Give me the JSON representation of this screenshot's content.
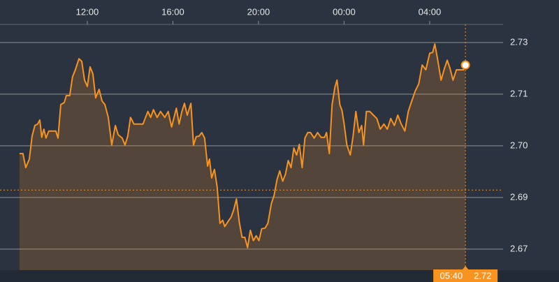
{
  "chart_data": {
    "type": "area-line",
    "x": [
      8.83,
      8.99,
      9.12,
      9.29,
      9.42,
      9.55,
      9.68,
      9.78,
      9.87,
      9.97,
      10.07,
      10.2,
      10.36,
      10.53,
      10.63,
      10.76,
      10.92,
      11.02,
      11.18,
      11.31,
      11.44,
      11.61,
      11.74,
      11.87,
      12.0,
      12.13,
      12.26,
      12.39,
      12.55,
      12.69,
      12.82,
      12.98,
      13.14,
      13.31,
      13.44,
      13.63,
      13.76,
      13.89,
      14.02,
      14.18,
      14.34,
      14.6,
      14.83,
      14.96,
      15.09,
      15.26,
      15.42,
      15.62,
      15.78,
      15.94,
      16.16,
      16.29,
      16.42,
      16.54,
      16.67,
      16.84,
      16.96,
      17.09,
      17.22,
      17.35,
      17.48,
      17.62,
      17.71,
      17.81,
      17.94,
      18.07,
      18.2,
      18.33,
      18.42,
      18.59,
      18.72,
      18.85,
      18.97,
      19.1,
      19.23,
      19.36,
      19.49,
      19.62,
      19.76,
      19.89,
      20.02,
      20.15,
      20.31,
      20.44,
      20.6,
      20.73,
      20.86,
      20.99,
      21.13,
      21.26,
      21.39,
      21.52,
      21.65,
      21.78,
      21.91,
      22.04,
      22.17,
      22.3,
      22.43,
      22.6,
      22.76,
      22.92,
      23.09,
      23.18,
      23.31,
      23.44,
      23.57,
      23.67,
      23.8,
      23.9,
      24.0,
      24.13,
      24.29,
      24.42,
      24.55,
      24.69,
      24.82,
      24.91,
      25.04,
      25.2,
      25.37,
      25.53,
      25.69,
      25.86,
      26.02,
      26.18,
      26.35,
      26.51,
      26.67,
      26.84,
      27.0,
      27.16,
      27.33,
      27.49,
      27.65,
      27.82,
      28.0,
      28.14,
      28.24,
      28.37,
      28.53,
      28.69,
      28.82,
      28.95,
      29.09,
      29.25,
      29.41,
      29.58,
      29.67
    ],
    "series": [
      {
        "color": "#f7931e",
        "values": [
          2.6979,
          2.6979,
          2.6941,
          2.6964,
          2.7026,
          2.7055,
          2.7059,
          2.707,
          2.7023,
          2.7045,
          2.7021,
          2.704,
          2.704,
          2.704,
          2.7021,
          2.7112,
          2.7117,
          2.7136,
          2.7136,
          2.7187,
          2.7206,
          2.7236,
          2.7229,
          2.7178,
          2.7161,
          2.7214,
          2.7195,
          2.713,
          2.7153,
          2.7121,
          2.7112,
          2.7077,
          2.7002,
          2.7055,
          2.703,
          2.7021,
          2.7002,
          2.7026,
          2.7077,
          2.7059,
          2.7059,
          2.7059,
          2.7093,
          2.7077,
          2.7098,
          2.7077,
          2.7093,
          2.7077,
          2.7093,
          2.7051,
          2.7102,
          2.7059,
          2.7093,
          2.7115,
          2.7083,
          2.7115,
          2.7002,
          2.7025,
          2.7026,
          2.7036,
          2.7021,
          2.6945,
          2.6964,
          2.6913,
          2.6936,
          2.6888,
          2.679,
          2.6798,
          2.6781,
          2.6796,
          2.6807,
          2.6828,
          2.6856,
          2.6794,
          2.6752,
          2.6752,
          2.6724,
          2.6771,
          2.6743,
          2.6756,
          2.6743,
          2.6775,
          2.6777,
          2.679,
          2.6843,
          2.6866,
          2.6907,
          2.6932,
          2.6904,
          2.6923,
          2.696,
          2.6941,
          2.6994,
          2.6975,
          2.7004,
          2.6941,
          2.7021,
          2.7036,
          2.7036,
          2.7021,
          2.7036,
          2.7023,
          2.7023,
          2.7036,
          2.6979,
          2.7112,
          2.7159,
          2.7178,
          2.7112,
          2.7096,
          2.7059,
          2.7002,
          2.6975,
          2.7026,
          2.7093,
          2.7036,
          2.7055,
          2.7002,
          2.7093,
          2.7093,
          2.7083,
          2.7074,
          2.7045,
          2.7059,
          2.7045,
          2.7074,
          2.7055,
          2.7083,
          2.7059,
          2.704,
          2.7093,
          2.7121,
          2.7149,
          2.7168,
          2.7219,
          2.7206,
          2.7251,
          2.7253,
          2.7276,
          2.7234,
          2.7178,
          2.721,
          2.7232,
          2.721,
          2.7178,
          2.7206,
          2.7206,
          2.7206,
          2.7219
        ]
      }
    ],
    "xlim": [
      7.92,
      31.43
    ],
    "ylim": [
      2.6663,
      2.7329
    ],
    "xticks": [
      {
        "value": 12,
        "label": "12:00"
      },
      {
        "value": 16,
        "label": "16:00"
      },
      {
        "value": 20,
        "label": "20:00"
      },
      {
        "value": 24,
        "label": "00:00"
      },
      {
        "value": 28,
        "label": "04:00"
      }
    ],
    "yticks": [
      {
        "value": 2.728,
        "label": "2.73"
      },
      {
        "value": 2.714,
        "label": "2.71"
      },
      {
        "value": 2.7,
        "label": "2.70"
      },
      {
        "value": 2.686,
        "label": "2.69"
      },
      {
        "value": 2.672,
        "label": "2.67"
      }
    ],
    "grid": true,
    "reference_line": 2.688,
    "cursor": {
      "time": "05:40",
      "value": "2.72"
    }
  }
}
